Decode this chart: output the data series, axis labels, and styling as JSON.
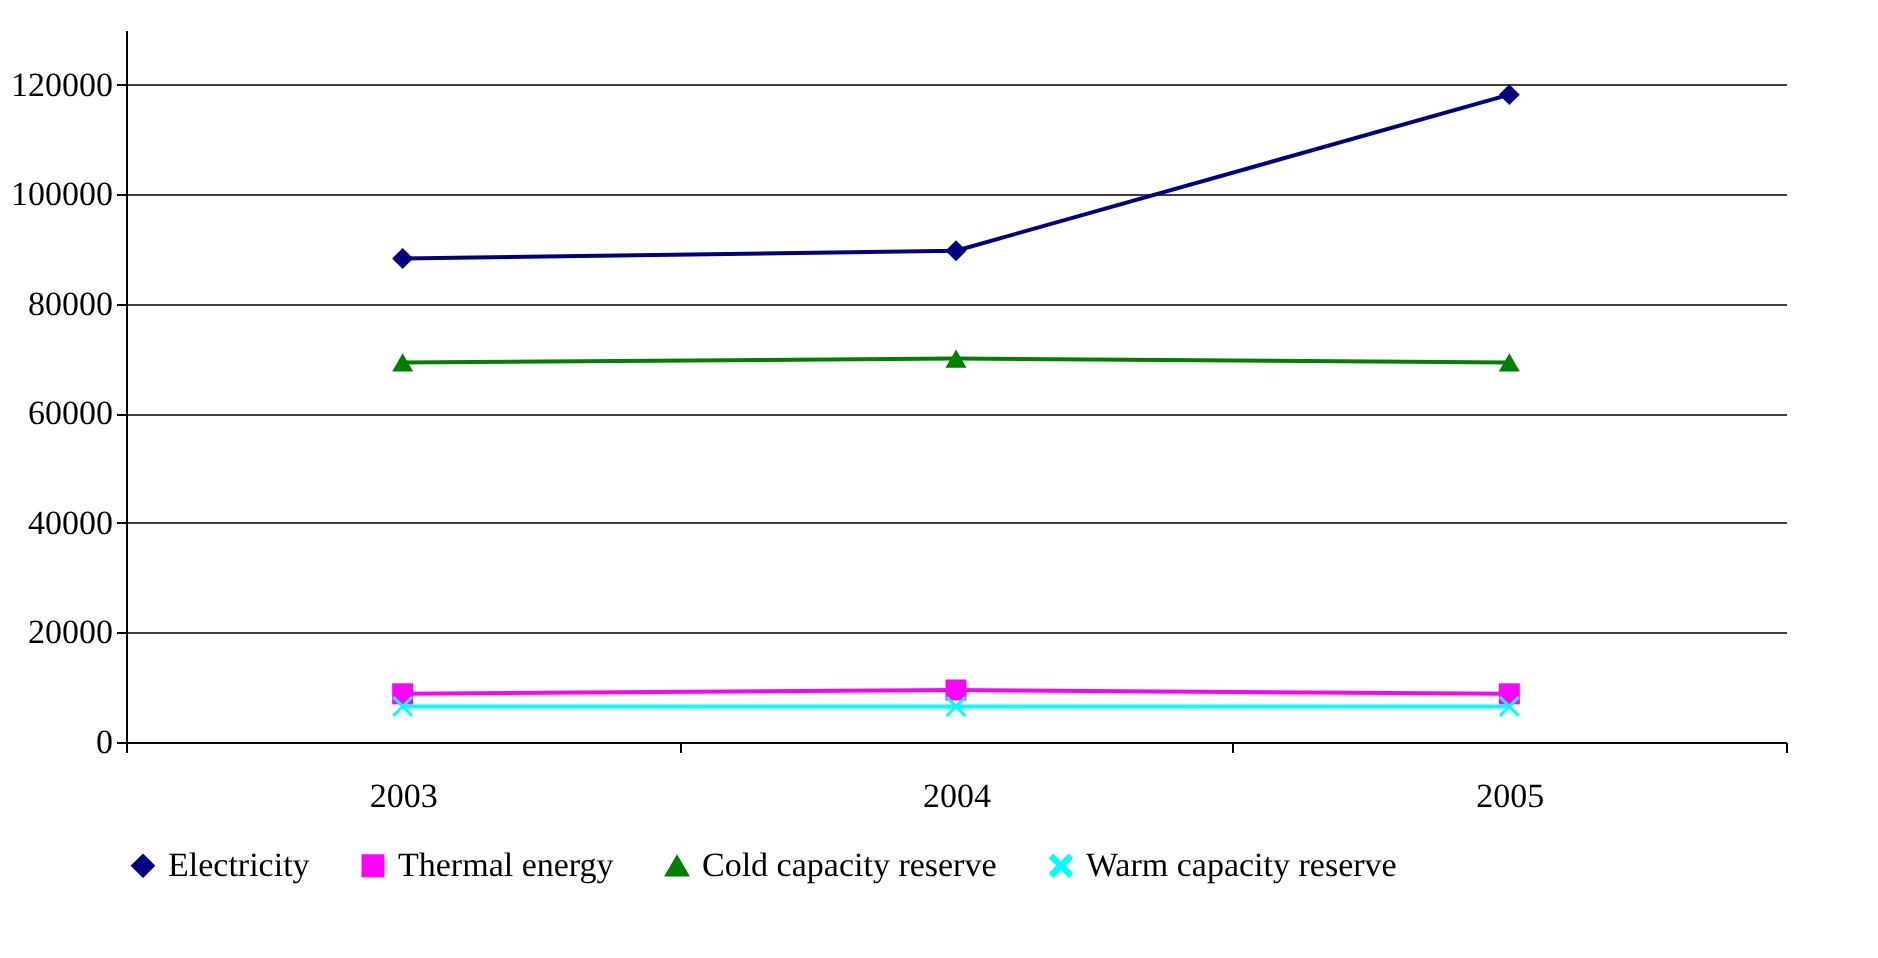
{
  "chart_data": {
    "type": "line",
    "categories": [
      "2003",
      "2004",
      "2005"
    ],
    "series": [
      {
        "name": "Electricity",
        "color": "#000080",
        "marker": "diamond",
        "values": [
          88300,
          89700,
          118200
        ]
      },
      {
        "name": "Thermal energy",
        "color": "#ff00ff",
        "marker": "square",
        "values": [
          8800,
          9500,
          8800
        ]
      },
      {
        "name": "Cold capacity reserve",
        "color": "#008000",
        "marker": "triangle",
        "values": [
          69300,
          70000,
          69300
        ]
      },
      {
        "name": "Warm capacity reserve",
        "color": "#00ffff",
        "marker": "cross",
        "values": [
          6500,
          6500,
          6500
        ]
      }
    ],
    "ylim": [
      0,
      130000
    ],
    "yticks": [
      0,
      20000,
      40000,
      60000,
      80000,
      100000,
      120000
    ],
    "grid": "y",
    "legend": "bottom",
    "line_style": "solid"
  }
}
